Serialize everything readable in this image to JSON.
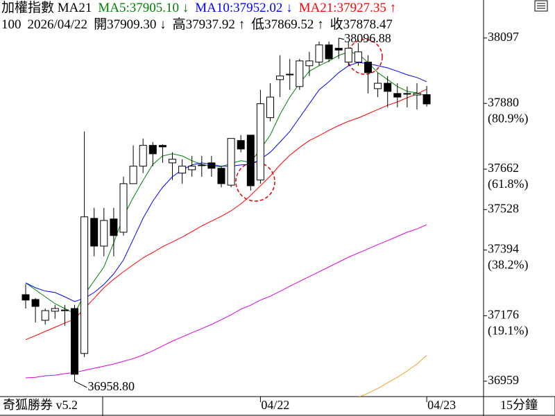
{
  "chart_data": {
    "type": "candlestick",
    "header": {
      "title": "加權指數 MA21",
      "ma_labels": [
        {
          "text": "MA5:37905.10 ↓",
          "color": "#008000"
        },
        {
          "text": "MA10:37952.02 ↓",
          "color": "#0000ff"
        },
        {
          "text": "MA21:37927.35 ↑",
          "color": "#ff0000"
        }
      ],
      "info": [
        "100",
        "2026/04/22",
        "開37909.30 ↓",
        "高37937.92 ↑",
        "低37869.52 ↑",
        "收37878.47"
      ]
    },
    "categories": [
      null,
      null,
      null,
      null,
      null,
      null,
      null,
      null,
      null,
      null,
      null,
      null,
      null,
      null,
      null,
      null,
      null,
      null,
      null,
      null,
      null,
      null,
      null,
      null,
      "04/22",
      null,
      null,
      null,
      null,
      null,
      null,
      null,
      null,
      null,
      null,
      null,
      null,
      null,
      null,
      null,
      null,
      "04/23"
    ],
    "ohlc": {
      "open": [
        37246,
        37230,
        37161,
        37191,
        37195,
        37200,
        37051,
        37499,
        37407,
        37497,
        37453,
        37614,
        37672,
        37741,
        37741,
        37683,
        37649,
        37660,
        37676,
        37683,
        37665,
        37609,
        37757,
        37775,
        37626,
        37833,
        37959,
        37977,
        37936,
        38005,
        38017,
        38074,
        38063,
        38017,
        38017,
        38017,
        37929,
        37947,
        37913,
        37913,
        37908,
        37909.3
      ],
      "high": [
        37281,
        37235,
        37200,
        37212,
        37212,
        37212,
        37787,
        37534,
        37534,
        37534,
        37637,
        37741,
        37764,
        37752,
        37745,
        37718,
        37695,
        37706,
        37706,
        37706,
        37672,
        37764,
        37775,
        37775,
        37925,
        37947,
        38040,
        38028,
        38028,
        38051,
        38085,
        38085,
        38096.88,
        38085,
        38080,
        38040,
        37982,
        37971,
        37947,
        37936,
        37947,
        37937.92
      ],
      "low": [
        37200,
        37154,
        37147,
        37166,
        37143,
        36958.8,
        37039,
        37373,
        37373,
        37373,
        37442,
        37614,
        37649,
        37672,
        37683,
        37626,
        37614,
        37637,
        37637,
        37637,
        37602,
        37602,
        37718,
        37591,
        37614,
        37821,
        37901,
        37925,
        37925,
        37971,
        38005,
        38017,
        38028,
        38005,
        38005,
        37913,
        37901,
        37867,
        37867,
        37867,
        37860,
        37869.52
      ],
      "close": [
        37228,
        37207,
        37193,
        37200,
        37195,
        36982,
        37504,
        37407,
        37492,
        37442,
        37614,
        37672,
        37741,
        37713,
        37736,
        37695,
        37672,
        37672,
        37676,
        37665,
        37614,
        37764,
        37729,
        37607,
        37879,
        37901,
        37971,
        37977,
        38021,
        38021,
        38074,
        38028,
        38057,
        38063,
        38051,
        37982,
        37947,
        37920,
        37901,
        37913,
        37913,
        37878.47
      ]
    },
    "series": [
      {
        "name": "MA5",
        "color": "#008000",
        "values": [
          37285,
          37262,
          37239,
          37216,
          37200,
          37184,
          37246,
          37292,
          37338,
          37418,
          37506,
          37568,
          37625,
          37678,
          37706,
          37713,
          37706,
          37690,
          37678,
          37671,
          37671,
          37681,
          37690,
          37685,
          37729,
          37775,
          37844,
          37901,
          37947,
          37987,
          38005,
          38021,
          38039,
          38051,
          38044,
          38016,
          37982,
          37959,
          37936,
          37920,
          37915,
          37905.1
        ]
      },
      {
        "name": "MA10",
        "color": "#0000ff",
        "values": [
          37285,
          37269,
          37258,
          37253,
          37239,
          37223,
          37234,
          37253,
          37280,
          37315,
          37361,
          37430,
          37499,
          37556,
          37602,
          37637,
          37660,
          37676,
          37683,
          37678,
          37672,
          37672,
          37676,
          37678,
          37695,
          37718,
          37752,
          37787,
          37833,
          37879,
          37925,
          37952,
          37982,
          38005,
          38016,
          38012,
          38005,
          37998,
          37987,
          37975,
          37966,
          37952.02
        ]
      },
      {
        "name": "MA21",
        "color": "#ff0000",
        "values": [
          37097,
          37110,
          37124,
          37138,
          37152,
          37165,
          37200,
          37234,
          37269,
          37297,
          37322,
          37345,
          37368,
          37386,
          37405,
          37421,
          37437,
          37455,
          37474,
          37490,
          37506,
          37524,
          37547,
          37575,
          37607,
          37639,
          37676,
          37708,
          37734,
          37757,
          37773,
          37791,
          37807,
          37821,
          37832,
          37846,
          37860,
          37874,
          37885,
          37899,
          37911,
          37927.35
        ]
      },
      {
        "color": "#e000e0",
        "values": [
          36970,
          36972,
          36977,
          36979,
          36984,
          36988,
          36995,
          37002,
          37009,
          37016,
          37025,
          37034,
          37046,
          37060,
          37076,
          37092,
          37106,
          37120,
          37133,
          37147,
          37163,
          37179,
          37198,
          37211,
          37228,
          37241,
          37257,
          37274,
          37290,
          37306,
          37322,
          37338,
          37354,
          37370,
          37384,
          37398,
          37412,
          37425,
          37439,
          37453,
          37464,
          37478
        ]
      },
      {
        "color": "#f0a020",
        "values": [
          null,
          null,
          null,
          null,
          null,
          null,
          null,
          null,
          null,
          null,
          null,
          null,
          null,
          null,
          null,
          null,
          null,
          null,
          null,
          null,
          null,
          null,
          null,
          null,
          null,
          null,
          null,
          null,
          null,
          null,
          null,
          null,
          null,
          null,
          36906,
          36919,
          36935,
          36954,
          36972,
          36993,
          37016,
          37044
        ]
      }
    ],
    "ylim": [
      36908,
      38223
    ],
    "yticks": [
      38097,
      37880,
      37662,
      37528,
      37394,
      37176,
      36959
    ],
    "fib_levels": [
      {
        "value": 37880,
        "label": "(80.9%)"
      },
      {
        "value": 37662,
        "label": "(61.8%)"
      },
      {
        "value": 37394,
        "label": "(38.2%)"
      },
      {
        "value": 37176,
        "label": "(19.1%)"
      }
    ],
    "annotations": [
      {
        "text": "38096.88"
      },
      {
        "text": "36958.80"
      }
    ],
    "footer": {
      "app": "奇狐勝券 v5.2",
      "period": "15分鐘"
    }
  }
}
